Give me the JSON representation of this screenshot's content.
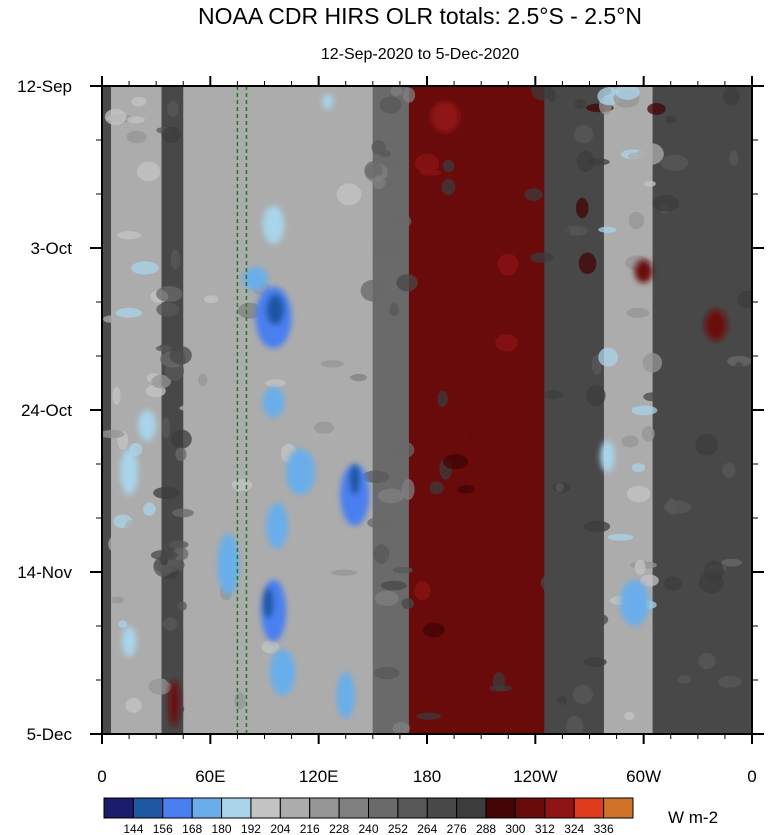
{
  "chart_data": {
    "type": "heatmap",
    "title": "NOAA CDR HIRS OLR totals: 2.5°S - 2.5°N",
    "subtitle": "12-Sep-2020 to 5-Dec-2020",
    "x_ticks": [
      "0",
      "60E",
      "120E",
      "180",
      "120W",
      "60W",
      "0"
    ],
    "x_tick_values": [
      0,
      60,
      120,
      180,
      240,
      300,
      360
    ],
    "xlim": [
      0,
      360
    ],
    "y_ticks": [
      "12-Sep",
      "3-Oct",
      "24-Oct",
      "14-Nov",
      "5-Dec"
    ],
    "y_tick_values": [
      0,
      21,
      42,
      63,
      84
    ],
    "ylim": [
      0,
      84
    ],
    "y_direction": "downward",
    "units": "W m-2",
    "colorbar": {
      "labels": [
        "144",
        "156",
        "168",
        "180",
        "192",
        "204",
        "216",
        "228",
        "240",
        "252",
        "264",
        "276",
        "288",
        "300",
        "312",
        "324",
        "336"
      ],
      "colors": [
        "#1c1c6c",
        "#1f57a3",
        "#4a7ff0",
        "#69aeea",
        "#a9d4ea",
        "#c4c4c4",
        "#acacac",
        "#969696",
        "#808080",
        "#6a6a6a",
        "#585858",
        "#484848",
        "#3c3c3c",
        "#420405",
        "#6a0b0b",
        "#8e1414",
        "#de3a1c",
        "#d07328"
      ]
    },
    "reference_lines": {
      "longitudes": [
        75,
        80
      ],
      "color": "#1f7a1f",
      "style": "dashed"
    },
    "regions": {
      "note_colors": {
        "convective_deep": "#1f57a3",
        "convective": "#4a7ff0",
        "light": "#c4c4c4",
        "clear": "#3c3c3c",
        "very_clear": "#420405"
      },
      "bands": [
        {
          "lon_from": 5,
          "lon_to": 33,
          "olr": 205
        },
        {
          "lon_from": 33,
          "lon_to": 45,
          "olr": 265
        },
        {
          "lon_from": 45,
          "lon_to": 150,
          "olr": 215
        },
        {
          "lon_from": 150,
          "lon_to": 170,
          "olr": 250
        },
        {
          "lon_from": 170,
          "lon_to": 245,
          "olr": 300
        },
        {
          "lon_from": 245,
          "lon_to": 278,
          "olr": 275
        },
        {
          "lon_from": 278,
          "lon_to": 305,
          "olr": 205
        },
        {
          "lon_from": 305,
          "lon_to": 360,
          "olr": 270
        }
      ],
      "patches": [
        {
          "lon": 95,
          "day": 30,
          "rlon": 10,
          "rday": 4,
          "olr": 160
        },
        {
          "lon": 96,
          "day": 29,
          "rlon": 5,
          "rday": 2,
          "olr": 144
        },
        {
          "lon": 85,
          "day": 25,
          "rlon": 7,
          "rday": 1.5,
          "olr": 175
        },
        {
          "lon": 95,
          "day": 18,
          "rlon": 6,
          "rday": 2.5,
          "olr": 180
        },
        {
          "lon": 95,
          "day": 41,
          "rlon": 6,
          "rday": 2,
          "olr": 170
        },
        {
          "lon": 110,
          "day": 50,
          "rlon": 8,
          "rday": 3,
          "olr": 168
        },
        {
          "lon": 140,
          "day": 53,
          "rlon": 8,
          "rday": 4,
          "olr": 160
        },
        {
          "lon": 140,
          "day": 51,
          "rlon": 3,
          "rday": 2,
          "olr": 144
        },
        {
          "lon": 97,
          "day": 57,
          "rlon": 6,
          "rday": 3,
          "olr": 170
        },
        {
          "lon": 70,
          "day": 62,
          "rlon": 6,
          "rday": 4,
          "olr": 168
        },
        {
          "lon": 95,
          "day": 68,
          "rlon": 7,
          "rday": 4,
          "olr": 160
        },
        {
          "lon": 92,
          "day": 67,
          "rlon": 3,
          "rday": 2,
          "olr": 144
        },
        {
          "lon": 100,
          "day": 76,
          "rlon": 7,
          "rday": 3,
          "olr": 168
        },
        {
          "lon": 135,
          "day": 79,
          "rlon": 5,
          "rday": 3,
          "olr": 168
        },
        {
          "lon": 15,
          "day": 50,
          "rlon": 5,
          "rday": 3,
          "olr": 180
        },
        {
          "lon": 25,
          "day": 44,
          "rlon": 5,
          "rday": 2,
          "olr": 180
        },
        {
          "lon": 295,
          "day": 67,
          "rlon": 8,
          "rday": 3,
          "olr": 168
        },
        {
          "lon": 280,
          "day": 48,
          "rlon": 4,
          "rday": 2,
          "olr": 180
        },
        {
          "lon": 15,
          "day": 72,
          "rlon": 4,
          "rday": 2,
          "olr": 180
        },
        {
          "lon": 125,
          "day": 2,
          "rlon": 3,
          "rday": 1,
          "olr": 180
        }
      ],
      "warm_patches": [
        {
          "lon": 340,
          "day": 31,
          "rlon": 6,
          "rday": 2,
          "olr": 300
        },
        {
          "lon": 300,
          "day": 24,
          "rlon": 5,
          "rday": 1.5,
          "olr": 300
        },
        {
          "lon": 190,
          "day": 4,
          "rlon": 8,
          "rday": 2,
          "olr": 312
        },
        {
          "lon": 40,
          "day": 80,
          "rlon": 3,
          "rday": 3,
          "olr": 300
        }
      ]
    }
  }
}
